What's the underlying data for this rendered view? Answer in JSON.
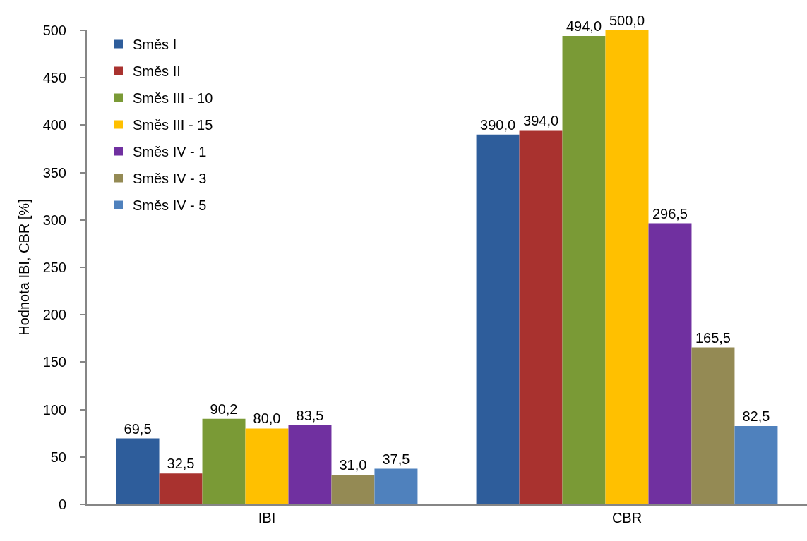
{
  "chart_data": {
    "type": "bar",
    "ylabel": "Hodnota IBI, CBR [%]",
    "categories": [
      "IBI",
      "CBR"
    ],
    "series": [
      {
        "name": "Směs I",
        "color": "#2e5d9b",
        "values": [
          69.5,
          390.0
        ],
        "value_labels": [
          "69,5",
          "390,0"
        ]
      },
      {
        "name": "Směs II",
        "color": "#a9322f",
        "values": [
          32.5,
          394.0
        ],
        "value_labels": [
          "32,5",
          "394,0"
        ]
      },
      {
        "name": "Směs III - 10",
        "color": "#7a9a36",
        "values": [
          90.2,
          494.0
        ],
        "value_labels": [
          "90,2",
          "494,0"
        ]
      },
      {
        "name": "Směs III - 15",
        "color": "#ffc000",
        "values": [
          80.0,
          500.0
        ],
        "value_labels": [
          "80,0",
          "500,0"
        ]
      },
      {
        "name": "Směs IV - 1",
        "color": "#7030a0",
        "values": [
          83.5,
          296.5
        ],
        "value_labels": [
          "83,5",
          "296,5"
        ]
      },
      {
        "name": "Směs IV - 3",
        "color": "#948a54",
        "values": [
          31.0,
          165.5
        ],
        "value_labels": [
          "31,0",
          "165,5"
        ]
      },
      {
        "name": "Směs IV - 5",
        "color": "#4f81bd",
        "values": [
          37.5,
          82.5
        ],
        "value_labels": [
          "37,5",
          "82,5"
        ]
      }
    ],
    "ylim": [
      0,
      500
    ],
    "yticks": [
      0,
      50,
      100,
      150,
      200,
      250,
      300,
      350,
      400,
      450,
      500
    ],
    "legend": "top left"
  }
}
